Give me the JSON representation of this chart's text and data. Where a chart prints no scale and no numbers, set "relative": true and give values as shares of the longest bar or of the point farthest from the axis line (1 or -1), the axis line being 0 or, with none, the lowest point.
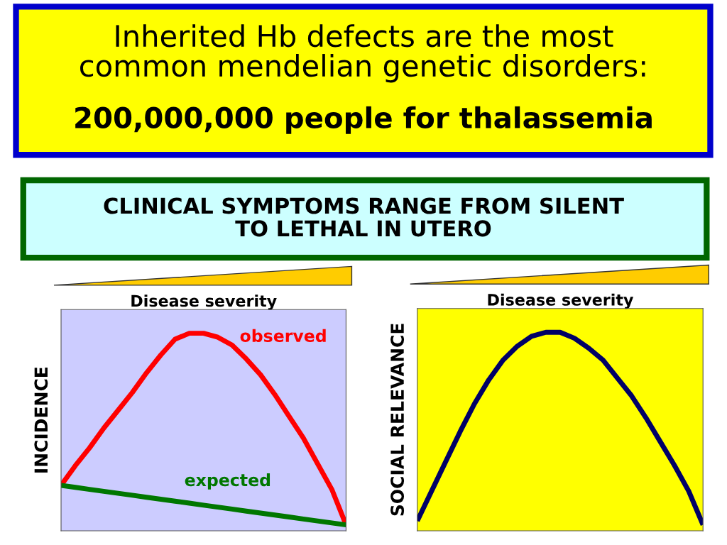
{
  "chart_data": [
    {
      "type": "other",
      "title": "Inherited Hb defects are the most\ncommon mendelian genetic disorders:",
      "subtitle": "200,000,000 people for thalassemia",
      "annotations": [
        "CLINICAL SYMPTOMS RANGE FROM SILENT\nTO LETHAL IN UTERO"
      ]
    },
    {
      "type": "line",
      "relative": true,
      "xlabel": "Disease severity",
      "ylabel": "INCIDENCE",
      "legend": false,
      "categories": [
        null,
        null,
        null,
        null,
        null,
        null,
        null,
        null,
        null,
        null,
        null,
        null,
        null,
        null,
        null,
        null,
        null,
        null,
        null,
        null,
        null
      ],
      "series": [
        {
          "name": "observed",
          "color": "#ff0000",
          "values": [
            0.23,
            0.33,
            0.42,
            0.52,
            0.61,
            0.7,
            0.8,
            0.89,
            0.97,
            1,
            1,
            0.98,
            0.94,
            0.87,
            0.79,
            0.69,
            0.58,
            0.47,
            0.34,
            0.21,
            0.03
          ]
        },
        {
          "name": "expected",
          "color": "#007700",
          "values": [
            0.23,
            0.22,
            0.21,
            0.2,
            0.19,
            0.18,
            0.17,
            0.16,
            0.15,
            0.14,
            0.13,
            0.12,
            0.11,
            0.1,
            0.09,
            0.08,
            0.07,
            0.06,
            0.05,
            0.04,
            0.03
          ]
        }
      ]
    },
    {
      "type": "line",
      "relative": true,
      "xlabel": "Disease severity",
      "ylabel": "SOCIAL RELEVANCE",
      "legend": false,
      "categories": [
        null,
        null,
        null,
        null,
        null,
        null,
        null,
        null,
        null,
        null,
        null,
        null,
        null,
        null,
        null,
        null,
        null,
        null,
        null,
        null,
        null
      ],
      "series": [
        {
          "color": "#000066",
          "values": [
            0.05,
            0.2,
            0.35,
            0.5,
            0.64,
            0.76,
            0.86,
            0.93,
            0.98,
            1,
            1,
            0.97,
            0.92,
            0.86,
            0.77,
            0.68,
            0.57,
            0.45,
            0.33,
            0.2,
            0.03
          ]
        }
      ]
    }
  ]
}
